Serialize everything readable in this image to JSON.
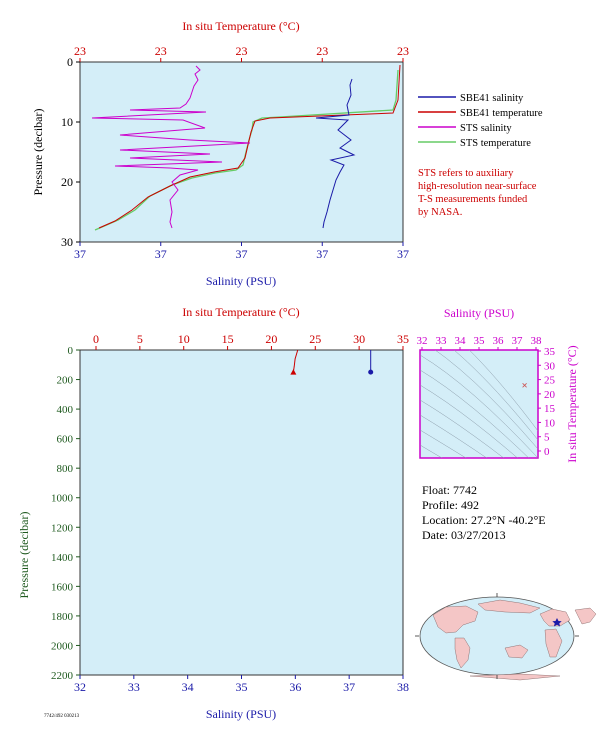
{
  "top_chart": {
    "temp_axis_title": "In situ Temperature (°C)",
    "temp_ticks": [
      "23",
      "23",
      "23",
      "23",
      "23"
    ],
    "pressure_axis_title": "Pressure (decibar)",
    "pressure_ticks": [
      "0",
      "10",
      "20",
      "30"
    ],
    "salinity_axis_title": "Salinity (PSU)",
    "salinity_ticks": [
      "37",
      "37",
      "37",
      "37",
      "37"
    ]
  },
  "legend": {
    "items": [
      {
        "label": "SBE41 salinity",
        "color": "#1a1aa8"
      },
      {
        "label": "SBE41 temperature",
        "color": "#cc0000"
      },
      {
        "label": "STS salinity",
        "color": "#cc00cc"
      },
      {
        "label": "STS temperature",
        "color": "#66cc66"
      }
    ],
    "note": [
      "STS refers to auxiliary",
      "high-resolution near-surface",
      "T-S measurements funded",
      "by NASA."
    ]
  },
  "bottom_chart": {
    "temp_axis_title": "In situ Temperature (°C)",
    "temp_ticks": [
      "0",
      "5",
      "10",
      "15",
      "20",
      "25",
      "30",
      "35"
    ],
    "pressure_axis_title": "Pressure (decibar)",
    "pressure_ticks": [
      "0",
      "200",
      "400",
      "600",
      "800",
      "1000",
      "1200",
      "1400",
      "1600",
      "1800",
      "2000",
      "2200"
    ],
    "salinity_axis_title": "Salinity (PSU)",
    "salinity_ticks": [
      "32",
      "33",
      "34",
      "35",
      "36",
      "37",
      "38"
    ]
  },
  "ts_diagram": {
    "salinity_axis_title": "Salinity (PSU)",
    "salinity_ticks": [
      "32",
      "33",
      "34",
      "35",
      "36",
      "37",
      "38"
    ],
    "temp_axis_title": "In situ Temperature (°C)",
    "temp_ticks": [
      "35",
      "30",
      "25",
      "20",
      "15",
      "10",
      "5",
      "0"
    ]
  },
  "float_info": {
    "float": "Float:  7742",
    "profile": "Profile:  492",
    "location": "Location:  27.2°N  -40.2°E",
    "date": "Date:  03/27/2013"
  },
  "footer_code": "7742/492 030213",
  "colors": {
    "plot_bg": "#d4eef8",
    "temp_axis": "#cc0000",
    "salinity_axis": "#1a1aa8",
    "pressure_axis": "#1f5a1f",
    "ts_axis": "#cc00cc"
  },
  "chart_data": [
    {
      "type": "line",
      "title": "",
      "ylabel": "Pressure (decibar)",
      "xlabel": "Salinity (PSU)",
      "ylim": [
        0,
        30
      ],
      "series": [
        {
          "name": "SBE41 salinity",
          "axis": "salinity",
          "note": "near-surface profile, values approx 37 PSU"
        },
        {
          "name": "SBE41 temperature",
          "axis": "temperature",
          "note": "near-surface profile, values approx 23 °C"
        },
        {
          "name": "STS salinity",
          "axis": "salinity"
        },
        {
          "name": "STS temperature",
          "axis": "temperature"
        }
      ]
    },
    {
      "type": "line",
      "title": "",
      "ylabel": "Pressure (decibar)",
      "xlabel": "Salinity (PSU)",
      "xlim_salinity": [
        32,
        38
      ],
      "xlim_temperature": [
        0,
        35
      ],
      "ylim": [
        0,
        2200
      ],
      "series": [
        {
          "name": "temperature",
          "x": [
            23.0,
            22.7,
            22.6,
            22.5
          ],
          "y": [
            0,
            60,
            110,
            150
          ]
        },
        {
          "name": "salinity",
          "x": [
            37.4,
            37.4,
            37.4,
            37.4
          ],
          "y": [
            0,
            60,
            110,
            150
          ]
        }
      ]
    },
    {
      "type": "scatter",
      "title": "",
      "xlabel": "Salinity (PSU)",
      "ylabel": "In situ Temperature (°C)",
      "xlim": [
        32,
        38
      ],
      "ylim": [
        -2,
        35
      ],
      "points": [
        {
          "x": 37.4,
          "y": 23.0
        }
      ]
    }
  ]
}
